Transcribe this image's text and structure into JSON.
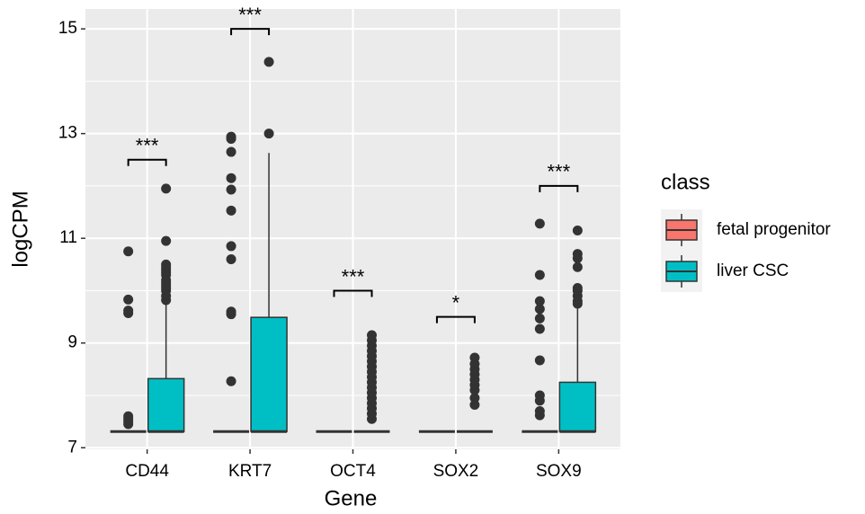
{
  "chart_data": {
    "type": "boxplot",
    "x_label": "Gene",
    "y_label": "logCPM",
    "categories": [
      "CD44",
      "KRT7",
      "OCT4",
      "SOX2",
      "SOX9"
    ],
    "ylim": [
      6.97,
      15.38
    ],
    "yticks": [
      7,
      9,
      11,
      13,
      15
    ],
    "minor_yticks": [
      8,
      10,
      12,
      14
    ],
    "grid": true,
    "legend_title": "class",
    "legend_position": "right",
    "series": [
      {
        "name": "fetal progenitor",
        "color": "#F8766D",
        "boxes": [
          {
            "low": 7.31,
            "q1": 7.31,
            "median": 7.31,
            "q3": 7.31,
            "high": 7.31,
            "outliers": [
              7.45,
              7.5,
              7.55,
              7.6,
              9.57,
              9.62,
              9.83,
              10.75
            ]
          },
          {
            "low": 7.31,
            "q1": 7.31,
            "median": 7.31,
            "q3": 7.31,
            "high": 7.31,
            "outliers": [
              8.27,
              9.55,
              9.6,
              10.6,
              10.85,
              11.53,
              11.93,
              12.15,
              12.65,
              12.9,
              12.94
            ]
          },
          {
            "low": 7.31,
            "q1": 7.31,
            "median": 7.31,
            "q3": 7.31,
            "high": 7.31,
            "outliers": []
          },
          {
            "low": 7.31,
            "q1": 7.31,
            "median": 7.31,
            "q3": 7.31,
            "high": 7.31,
            "outliers": []
          },
          {
            "low": 7.31,
            "q1": 7.31,
            "median": 7.31,
            "q3": 7.31,
            "high": 7.31,
            "outliers": [
              7.62,
              7.7,
              7.9,
              8.0,
              8.67,
              9.27,
              9.47,
              9.65,
              9.8,
              10.3,
              11.28
            ]
          }
        ]
      },
      {
        "name": "liver CSC",
        "color": "#00BFC4",
        "boxes": [
          {
            "low": 7.31,
            "q1": 7.31,
            "median": 7.31,
            "q3": 8.32,
            "high": 9.78,
            "outliers": [
              9.82,
              9.9,
              10.0,
              10.05,
              10.1,
              10.15,
              10.2,
              10.3,
              10.35,
              10.4,
              10.45,
              10.5,
              10.95,
              11.95
            ]
          },
          {
            "low": 7.31,
            "q1": 7.31,
            "median": 7.31,
            "q3": 9.49,
            "high": 12.63,
            "outliers": [
              13.0,
              14.37
            ]
          },
          {
            "low": 7.31,
            "q1": 7.31,
            "median": 7.31,
            "q3": 7.31,
            "high": 7.31,
            "outliers": [
              7.55,
              7.65,
              7.75,
              7.85,
              7.95,
              8.05,
              8.15,
              8.25,
              8.35,
              8.45,
              8.55,
              8.65,
              8.75,
              8.85,
              8.95,
              9.05,
              9.15
            ]
          },
          {
            "low": 7.31,
            "q1": 7.31,
            "median": 7.31,
            "q3": 7.31,
            "high": 7.31,
            "outliers": [
              7.82,
              7.95,
              8.1,
              8.2,
              8.3,
              8.4,
              8.5,
              8.6,
              8.72
            ]
          },
          {
            "low": 7.31,
            "q1": 7.31,
            "median": 7.31,
            "q3": 8.25,
            "high": 9.66,
            "outliers": [
              9.75,
              9.8,
              9.9,
              10.0,
              10.05,
              10.45,
              10.62,
              10.7,
              11.15
            ]
          }
        ]
      }
    ],
    "significance": [
      {
        "label": "***",
        "y": 12.5
      },
      {
        "label": "***",
        "y": 15.0
      },
      {
        "label": "***",
        "y": 10.0
      },
      {
        "label": "*",
        "y": 9.5
      },
      {
        "label": "***",
        "y": 12.0
      }
    ]
  }
}
